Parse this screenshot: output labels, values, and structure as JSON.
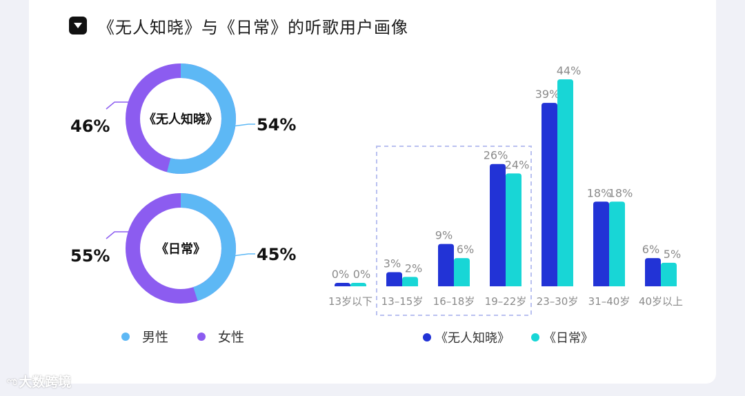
{
  "header": {
    "title": "《无人知晓》与《日常》的听歌用户画像"
  },
  "colors": {
    "male": "#5db8f5",
    "female": "#8c5cf0",
    "series1": "#2233d6",
    "series2": "#18d6d6",
    "value_text": "#8a8a8a",
    "donut_value": "#111111"
  },
  "gender_legend": [
    {
      "label": "男性",
      "color": "#5db8f5"
    },
    {
      "label": "女性",
      "color": "#8c5cf0"
    }
  ],
  "donuts": [
    {
      "center_label": "《无人知晓》",
      "male_pct": 54,
      "female_pct": 46,
      "male_text": "54%",
      "female_text": "46%"
    },
    {
      "center_label": "《日常》",
      "male_pct": 45,
      "female_pct": 55,
      "male_text": "45%",
      "female_text": "55%"
    }
  ],
  "chart_data": {
    "type": "bar",
    "categories": [
      "13岁以下",
      "13–15岁",
      "16–18岁",
      "19–22岁",
      "23–30岁",
      "31–40岁",
      "40岁以上"
    ],
    "series": [
      {
        "name": "《无人知晓》",
        "values": [
          0,
          3,
          9,
          26,
          39,
          18,
          6
        ],
        "labels": [
          "0%",
          "3%",
          "9%",
          "26%",
          "39%",
          "18%",
          "6%"
        ]
      },
      {
        "name": "《日常》",
        "values": [
          0,
          2,
          6,
          24,
          44,
          18,
          5
        ],
        "labels": [
          "0%",
          "2%",
          "6%",
          "24%",
          "44%",
          "18%",
          "5%"
        ]
      }
    ],
    "highlight_range": [
      "13–15岁",
      "19–22岁"
    ],
    "legend_position": "bottom"
  },
  "watermark": {
    "icon": "ಌ",
    "text": "大数跨境"
  }
}
